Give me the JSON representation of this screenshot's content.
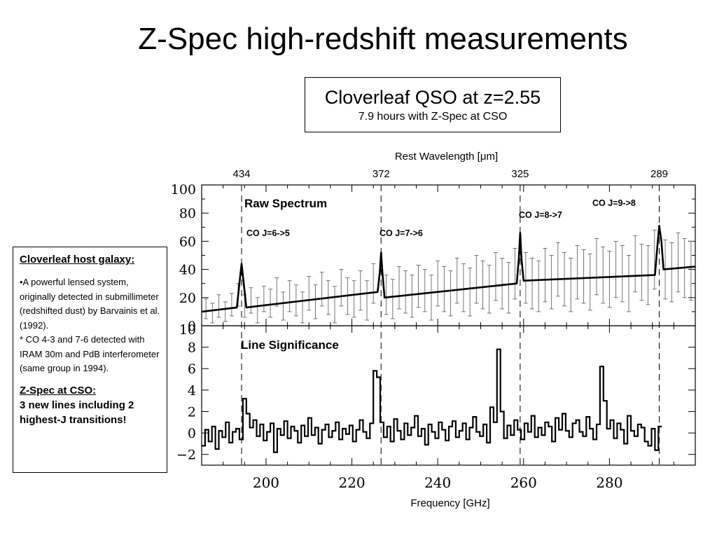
{
  "slide": {
    "title": "Z-Spec high-redshift measurements"
  },
  "info_box": {
    "title": "Cloverleaf QSO at z=2.55",
    "subtitle": "7.9 hours with Z-Spec at CSO"
  },
  "side_panel": {
    "heading": "Cloverleaf host galaxy:",
    "para1": "•A powerful lensed system, originally detected in submillimeter (redshifted dust) by Barvainis et al. (1992).",
    "para2": "* CO 4-3 and 7-6 detected with IRAM 30m and PdB interferometer (same group in 1994).",
    "heading2": "Z-Spec at CSO:",
    "bold_text": "3 new lines including 2 highest-J transitions!"
  },
  "colors": {
    "ink": "#000000",
    "background": "#ffffff",
    "errorbar": "#666666"
  },
  "chart_data": [
    {
      "type": "line",
      "panel_label": "Raw Spectrum",
      "xlabel": "Frequency [GHz]",
      "top_axis_label": "Rest Wavelength [μm]",
      "top_axis_ticks": [
        {
          "label": "434",
          "freq": 194.3
        },
        {
          "label": "372",
          "freq": 226.8
        },
        {
          "label": "325",
          "freq": 259.2
        },
        {
          "label": "289",
          "freq": 291.6
        }
      ],
      "xlim": [
        185,
        300
      ],
      "ylim": [
        0,
        100
      ],
      "x_ticks": [
        200,
        220,
        240,
        260,
        280
      ],
      "y_ticks": [
        0,
        20,
        40,
        60,
        80,
        100
      ],
      "line_markers": [
        194.3,
        226.8,
        259.2,
        291.6
      ],
      "line_labels": [
        {
          "text": "CO J=6->5",
          "freq": 194.3,
          "y": 74
        },
        {
          "text": "CO J=7->6",
          "freq": 226.8,
          "y": 74
        },
        {
          "text": "CO J=8->7",
          "freq": 259.2,
          "y": 88
        },
        {
          "text": "CO J=9->8",
          "freq": 291.6,
          "y": 95
        }
      ],
      "series": [
        {
          "kind": "model",
          "x": [
            185,
            193.2,
            193.8,
            194.3,
            194.8,
            195.4,
            226,
            226.5,
            226.8,
            227.1,
            227.6,
            258.4,
            258.9,
            259.2,
            259.5,
            260,
            290.6,
            291.2,
            291.6,
            292.1,
            292.6,
            300
          ],
          "y": [
            10,
            13,
            30,
            44,
            30,
            13,
            24,
            38,
            52,
            38,
            20,
            30,
            48,
            66,
            48,
            32,
            36,
            58,
            71,
            60,
            40,
            42
          ]
        },
        {
          "kind": "errorbars",
          "x": [
            186,
            187.5,
            189,
            190.5,
            192,
            193.5,
            195,
            196.5,
            198,
            199.5,
            201,
            202.5,
            204,
            205.5,
            207,
            208.5,
            210,
            211.5,
            213,
            214.5,
            216,
            217.5,
            219,
            220.5,
            222,
            223.5,
            225,
            228,
            229.5,
            231,
            232.5,
            234,
            235.5,
            237,
            238.5,
            240,
            241.5,
            243,
            244.5,
            246,
            247.5,
            249,
            250.5,
            252,
            253.5,
            255,
            256.5,
            258,
            260.5,
            262,
            263.5,
            265,
            266.5,
            268,
            269.5,
            271,
            272.5,
            274,
            275.5,
            277,
            278.5,
            280,
            281.5,
            283,
            284.5,
            286,
            287.5,
            289,
            290.5,
            293,
            294.5,
            296,
            297.5,
            299
          ],
          "y": [
            12,
            9,
            14,
            10,
            15,
            22,
            14,
            18,
            11,
            19,
            16,
            24,
            14,
            21,
            18,
            13,
            23,
            17,
            26,
            20,
            15,
            27,
            21,
            19,
            25,
            18,
            30,
            22,
            19,
            27,
            24,
            21,
            28,
            25,
            20,
            30,
            26,
            23,
            32,
            27,
            24,
            33,
            29,
            26,
            35,
            30,
            27,
            37,
            34,
            30,
            28,
            36,
            31,
            40,
            33,
            29,
            38,
            35,
            31,
            42,
            36,
            33,
            40,
            37,
            30,
            44,
            38,
            36,
            47,
            40,
            38,
            45,
            41,
            39
          ],
          "err": [
            7,
            7,
            8,
            7,
            8,
            8,
            8,
            9,
            9,
            9,
            10,
            10,
            10,
            11,
            11,
            11,
            12,
            12,
            12,
            12,
            13,
            13,
            13,
            13,
            14,
            14,
            14,
            14,
            14,
            15,
            15,
            15,
            15,
            15,
            16,
            16,
            16,
            16,
            16,
            17,
            17,
            17,
            17,
            17,
            17,
            18,
            18,
            18,
            18,
            18,
            18,
            19,
            19,
            19,
            19,
            19,
            19,
            19,
            20,
            20,
            20,
            20,
            20,
            20,
            20,
            20,
            20,
            21,
            21,
            21,
            21,
            21,
            21,
            21
          ]
        }
      ]
    },
    {
      "type": "line",
      "panel_label": "Line Significance",
      "xlabel": "Frequency [GHz]",
      "xlim": [
        185,
        300
      ],
      "ylim": [
        -3,
        10
      ],
      "x_ticks": [
        200,
        220,
        240,
        260,
        280
      ],
      "x_tick_labels": [
        "200",
        "220",
        "240",
        "260",
        "280"
      ],
      "y_ticks": [
        -2,
        0,
        2,
        4,
        6,
        8,
        10
      ],
      "y_tick_labels": [
        "−2",
        "0",
        "2",
        "4",
        "6",
        "8",
        "10"
      ],
      "line_markers": [
        194.3,
        226.8,
        259.2,
        291.6
      ],
      "series": [
        {
          "kind": "steps",
          "step_width": 0.8,
          "x_start": 185,
          "values": [
            -1.2,
            0.3,
            -0.8,
            0.6,
            -1.5,
            0.2,
            -0.4,
            1.0,
            -0.9,
            0.1,
            0.4,
            -0.6,
            3.2,
            1.8,
            0.5,
            1.2,
            -0.3,
            0.8,
            -0.7,
            0.1,
            0.9,
            -1.8,
            0.4,
            -0.2,
            1.1,
            -0.5,
            0.6,
            0.2,
            -0.9,
            0.7,
            -0.3,
            1.4,
            -0.2,
            0.5,
            -1.0,
            0.3,
            0.8,
            -0.4,
            0.2,
            1.0,
            -0.6,
            0.4,
            -0.1,
            0.7,
            -0.8,
            0.3,
            1.2,
            0.1,
            -0.5,
            0.9,
            5.8,
            5.2,
            1.0,
            -0.4,
            0.6,
            -0.8,
            1.3,
            0.2,
            -0.6,
            0.9,
            -0.2,
            0.5,
            1.6,
            -0.3,
            0.4,
            -1.1,
            0.8,
            0.1,
            -0.5,
            1.0,
            0.3,
            -0.7,
            0.6,
            1.1,
            -0.4,
            0.2,
            0.9,
            -0.6,
            0.5,
            1.5,
            0.1,
            -0.3,
            0.8,
            -0.9,
            2.4,
            1.0,
            7.8,
            2.0,
            -0.5,
            0.7,
            -0.2,
            1.2,
            0.3,
            -0.6,
            0.9,
            0.1,
            1.6,
            -0.4,
            0.5,
            -0.2,
            1.0,
            0.6,
            -0.8,
            1.4,
            0.3,
            1.8,
            0.2,
            -0.4,
            0.9,
            1.2,
            0.1,
            -0.3,
            1.5,
            0.4,
            -0.6,
            0.8,
            6.2,
            3.0,
            0.4,
            1.2,
            -0.5,
            0.9,
            0.3,
            -1.0,
            1.6,
            0.2,
            -0.3,
            0.8,
            0.5,
            -0.8,
            -1.2,
            0.4,
            -1.6,
            0.6
          ]
        }
      ]
    }
  ]
}
